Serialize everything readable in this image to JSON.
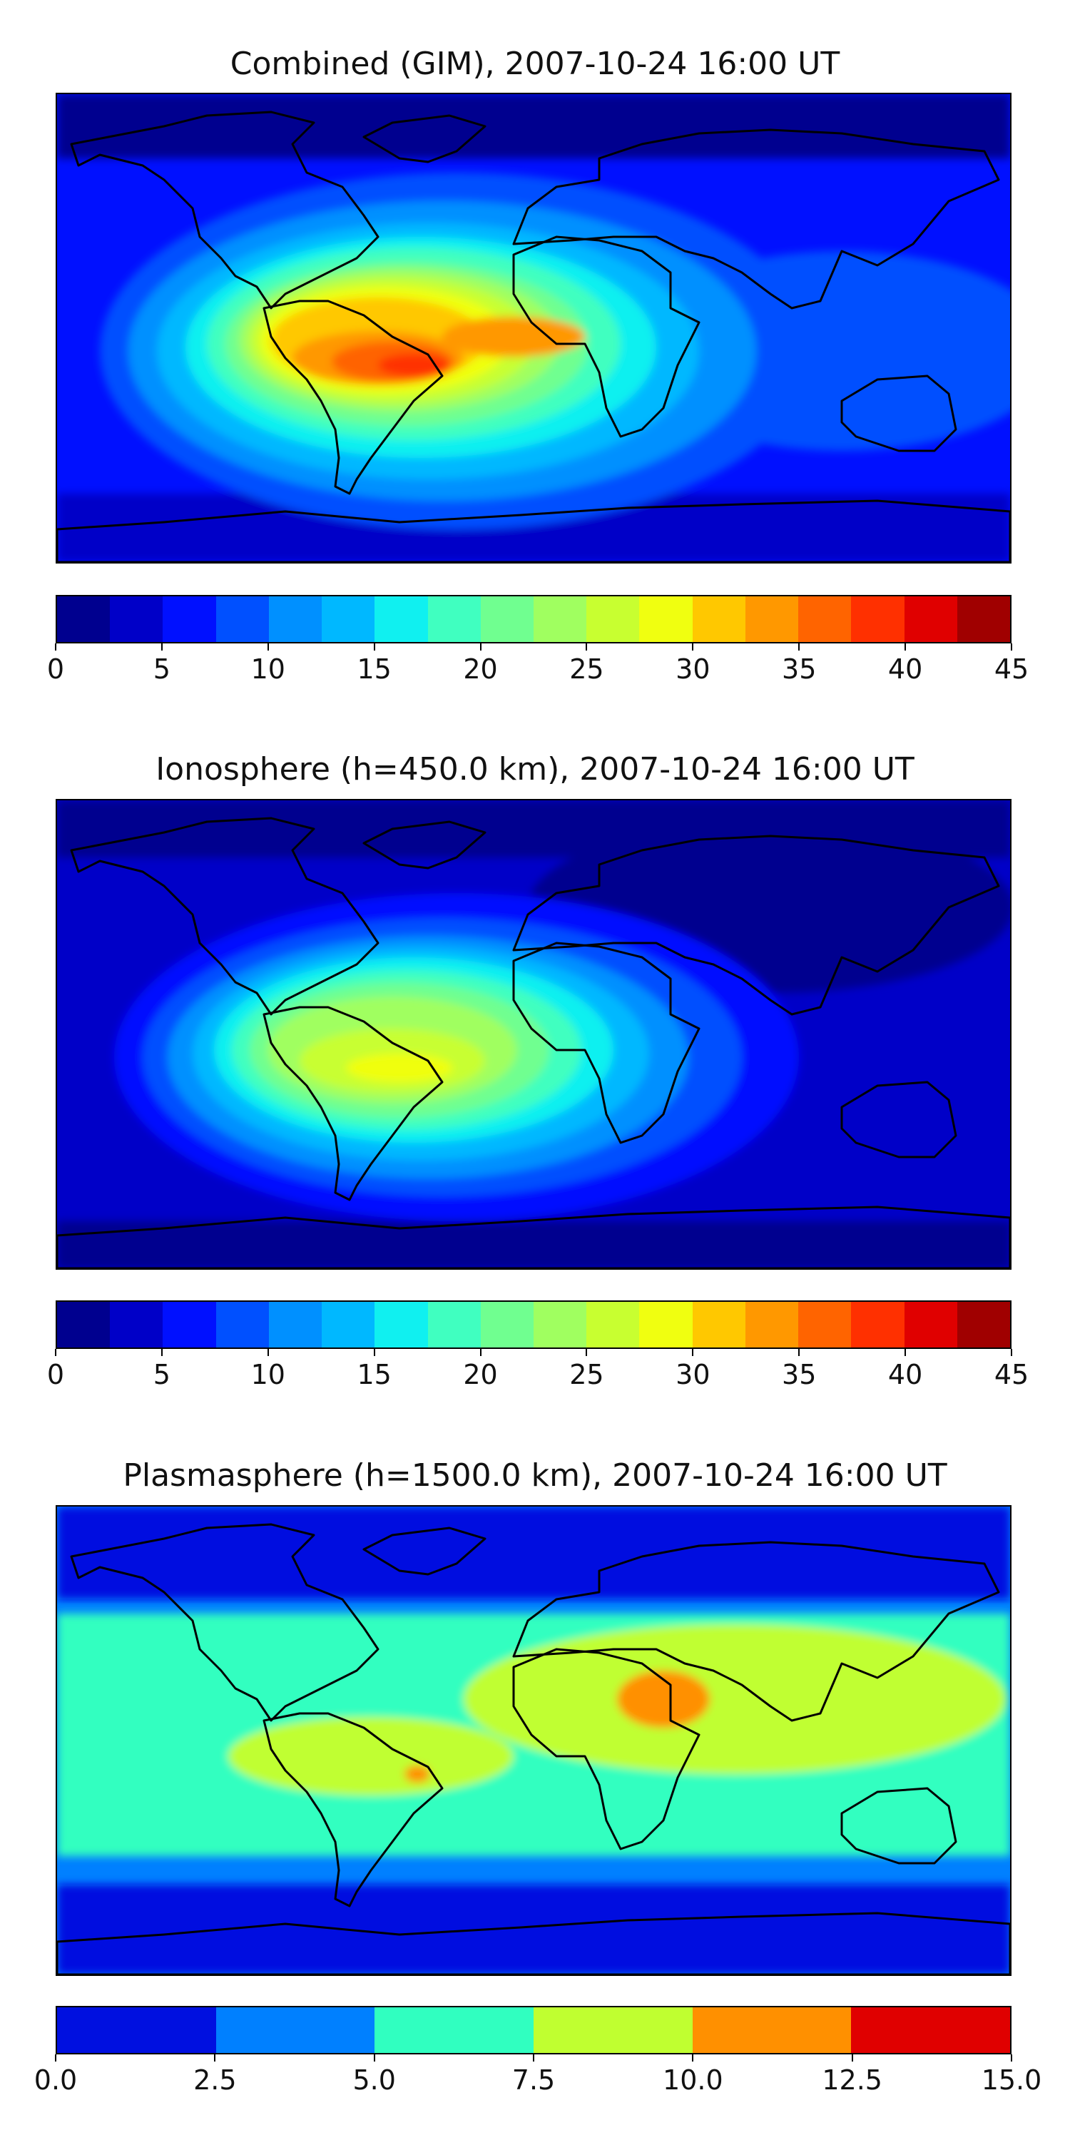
{
  "chart_data": [
    {
      "type": "heatmap",
      "title": "Combined (GIM), 2007-10-24 16:00 UT",
      "projection": "global lat-lon map with coastlines",
      "colorbar": {
        "levels": [
          0,
          2.5,
          5,
          7.5,
          10,
          12.5,
          15,
          17.5,
          20,
          22.5,
          25,
          27.5,
          30,
          32.5,
          35,
          37.5,
          40,
          42.5,
          45
        ],
        "tick_labels": [
          "0",
          "5",
          "10",
          "15",
          "20",
          "25",
          "30",
          "35",
          "40",
          "45"
        ],
        "tick_values": [
          0,
          5,
          10,
          15,
          20,
          25,
          30,
          35,
          40,
          45
        ],
        "range": [
          0,
          45
        ],
        "colors": [
          "#00008f",
          "#0000c8",
          "#0010ff",
          "#0050ff",
          "#0090ff",
          "#00b8ff",
          "#10f0f0",
          "#40ffc0",
          "#70ff90",
          "#a0ff60",
          "#c8ff30",
          "#f0ff10",
          "#ffc800",
          "#ff9800",
          "#ff6400",
          "#ff3000",
          "#e00000",
          "#a00000"
        ]
      },
      "features": [
        {
          "name": "south-america-max",
          "level": 37.5
        },
        {
          "name": "equatorial-anomaly",
          "level": 30
        },
        {
          "name": "africa-crest",
          "level": 32.5
        }
      ]
    },
    {
      "type": "heatmap",
      "title": "Ionosphere  (h=450.0 km), 2007-10-24 16:00 UT",
      "projection": "global lat-lon map with coastlines",
      "colorbar": {
        "levels": [
          0,
          2.5,
          5,
          7.5,
          10,
          12.5,
          15,
          17.5,
          20,
          22.5,
          25,
          27.5,
          30,
          32.5,
          35,
          37.5,
          40,
          42.5,
          45
        ],
        "tick_labels": [
          "0",
          "5",
          "10",
          "15",
          "20",
          "25",
          "30",
          "35",
          "40",
          "45"
        ],
        "tick_values": [
          0,
          5,
          10,
          15,
          20,
          25,
          30,
          35,
          40,
          45
        ],
        "range": [
          0,
          45
        ],
        "colors": [
          "#00008f",
          "#0000c8",
          "#0010ff",
          "#0050ff",
          "#0090ff",
          "#00b8ff",
          "#10f0f0",
          "#40ffc0",
          "#70ff90",
          "#a0ff60",
          "#c8ff30",
          "#f0ff10",
          "#ffc800",
          "#ff9800",
          "#ff6400",
          "#ff3000",
          "#e00000",
          "#a00000"
        ]
      },
      "features": [
        {
          "name": "south-america-max",
          "level": 27.5
        },
        {
          "name": "equatorial-anomaly",
          "level": 22.5
        }
      ]
    },
    {
      "type": "heatmap",
      "title": "Plasmasphere (h=1500.0 km), 2007-10-24 16:00 UT",
      "projection": "global lat-lon map with coastlines",
      "colorbar": {
        "levels": [
          0,
          2.5,
          5,
          7.5,
          10,
          12.5,
          15
        ],
        "tick_labels": [
          "0.0",
          "2.5",
          "5.0",
          "7.5",
          "10.0",
          "12.5",
          "15.0"
        ],
        "tick_values": [
          0,
          2.5,
          5,
          7.5,
          10,
          12.5,
          15
        ],
        "range": [
          0,
          15
        ],
        "colors": [
          "#0010e0",
          "#0080ff",
          "#30ffc0",
          "#c0ff30",
          "#ff9000",
          "#e00000"
        ]
      },
      "features": [
        {
          "name": "equatorial-band",
          "level": 7.5
        },
        {
          "name": "arabia-max",
          "level": 10
        },
        {
          "name": "brazil-max",
          "level": 10
        }
      ]
    }
  ]
}
